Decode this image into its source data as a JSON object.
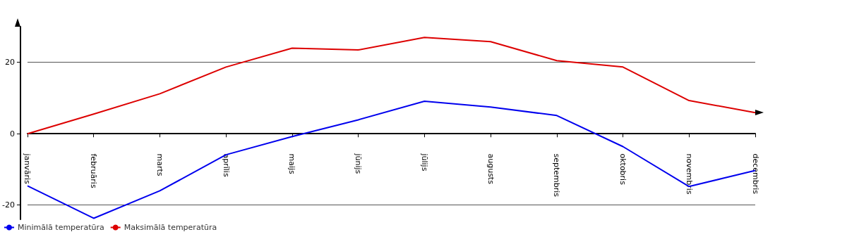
{
  "chart_data": {
    "type": "line",
    "categories": [
      "janvāris",
      "februāris",
      "marts",
      "aprīlis",
      "maijs",
      "jūnijs",
      "jūlijs",
      "augusts",
      "septembris",
      "oktobris",
      "novembris",
      "decembris"
    ],
    "series": [
      {
        "name": "Minimālā temperatūra",
        "color": "#0000ee",
        "values": [
          -14.6,
          -23.7,
          -16,
          -5.9,
          -0.8,
          3.9,
          9.1,
          7.5,
          5.1,
          -3.6,
          -14.8,
          -10.3
        ]
      },
      {
        "name": "Maksimālā temperatūra",
        "color": "#dd0000",
        "values": [
          0,
          5.5,
          11.2,
          18.7,
          24,
          23.5,
          27,
          25.8,
          20.5,
          18.7,
          9.3,
          5.9
        ]
      }
    ],
    "ylim": [
      -24,
      30
    ],
    "yticks": [
      -20,
      0,
      20
    ],
    "grid": "y",
    "legend": "bottom left",
    "marker": "none",
    "line_style": "solid"
  }
}
